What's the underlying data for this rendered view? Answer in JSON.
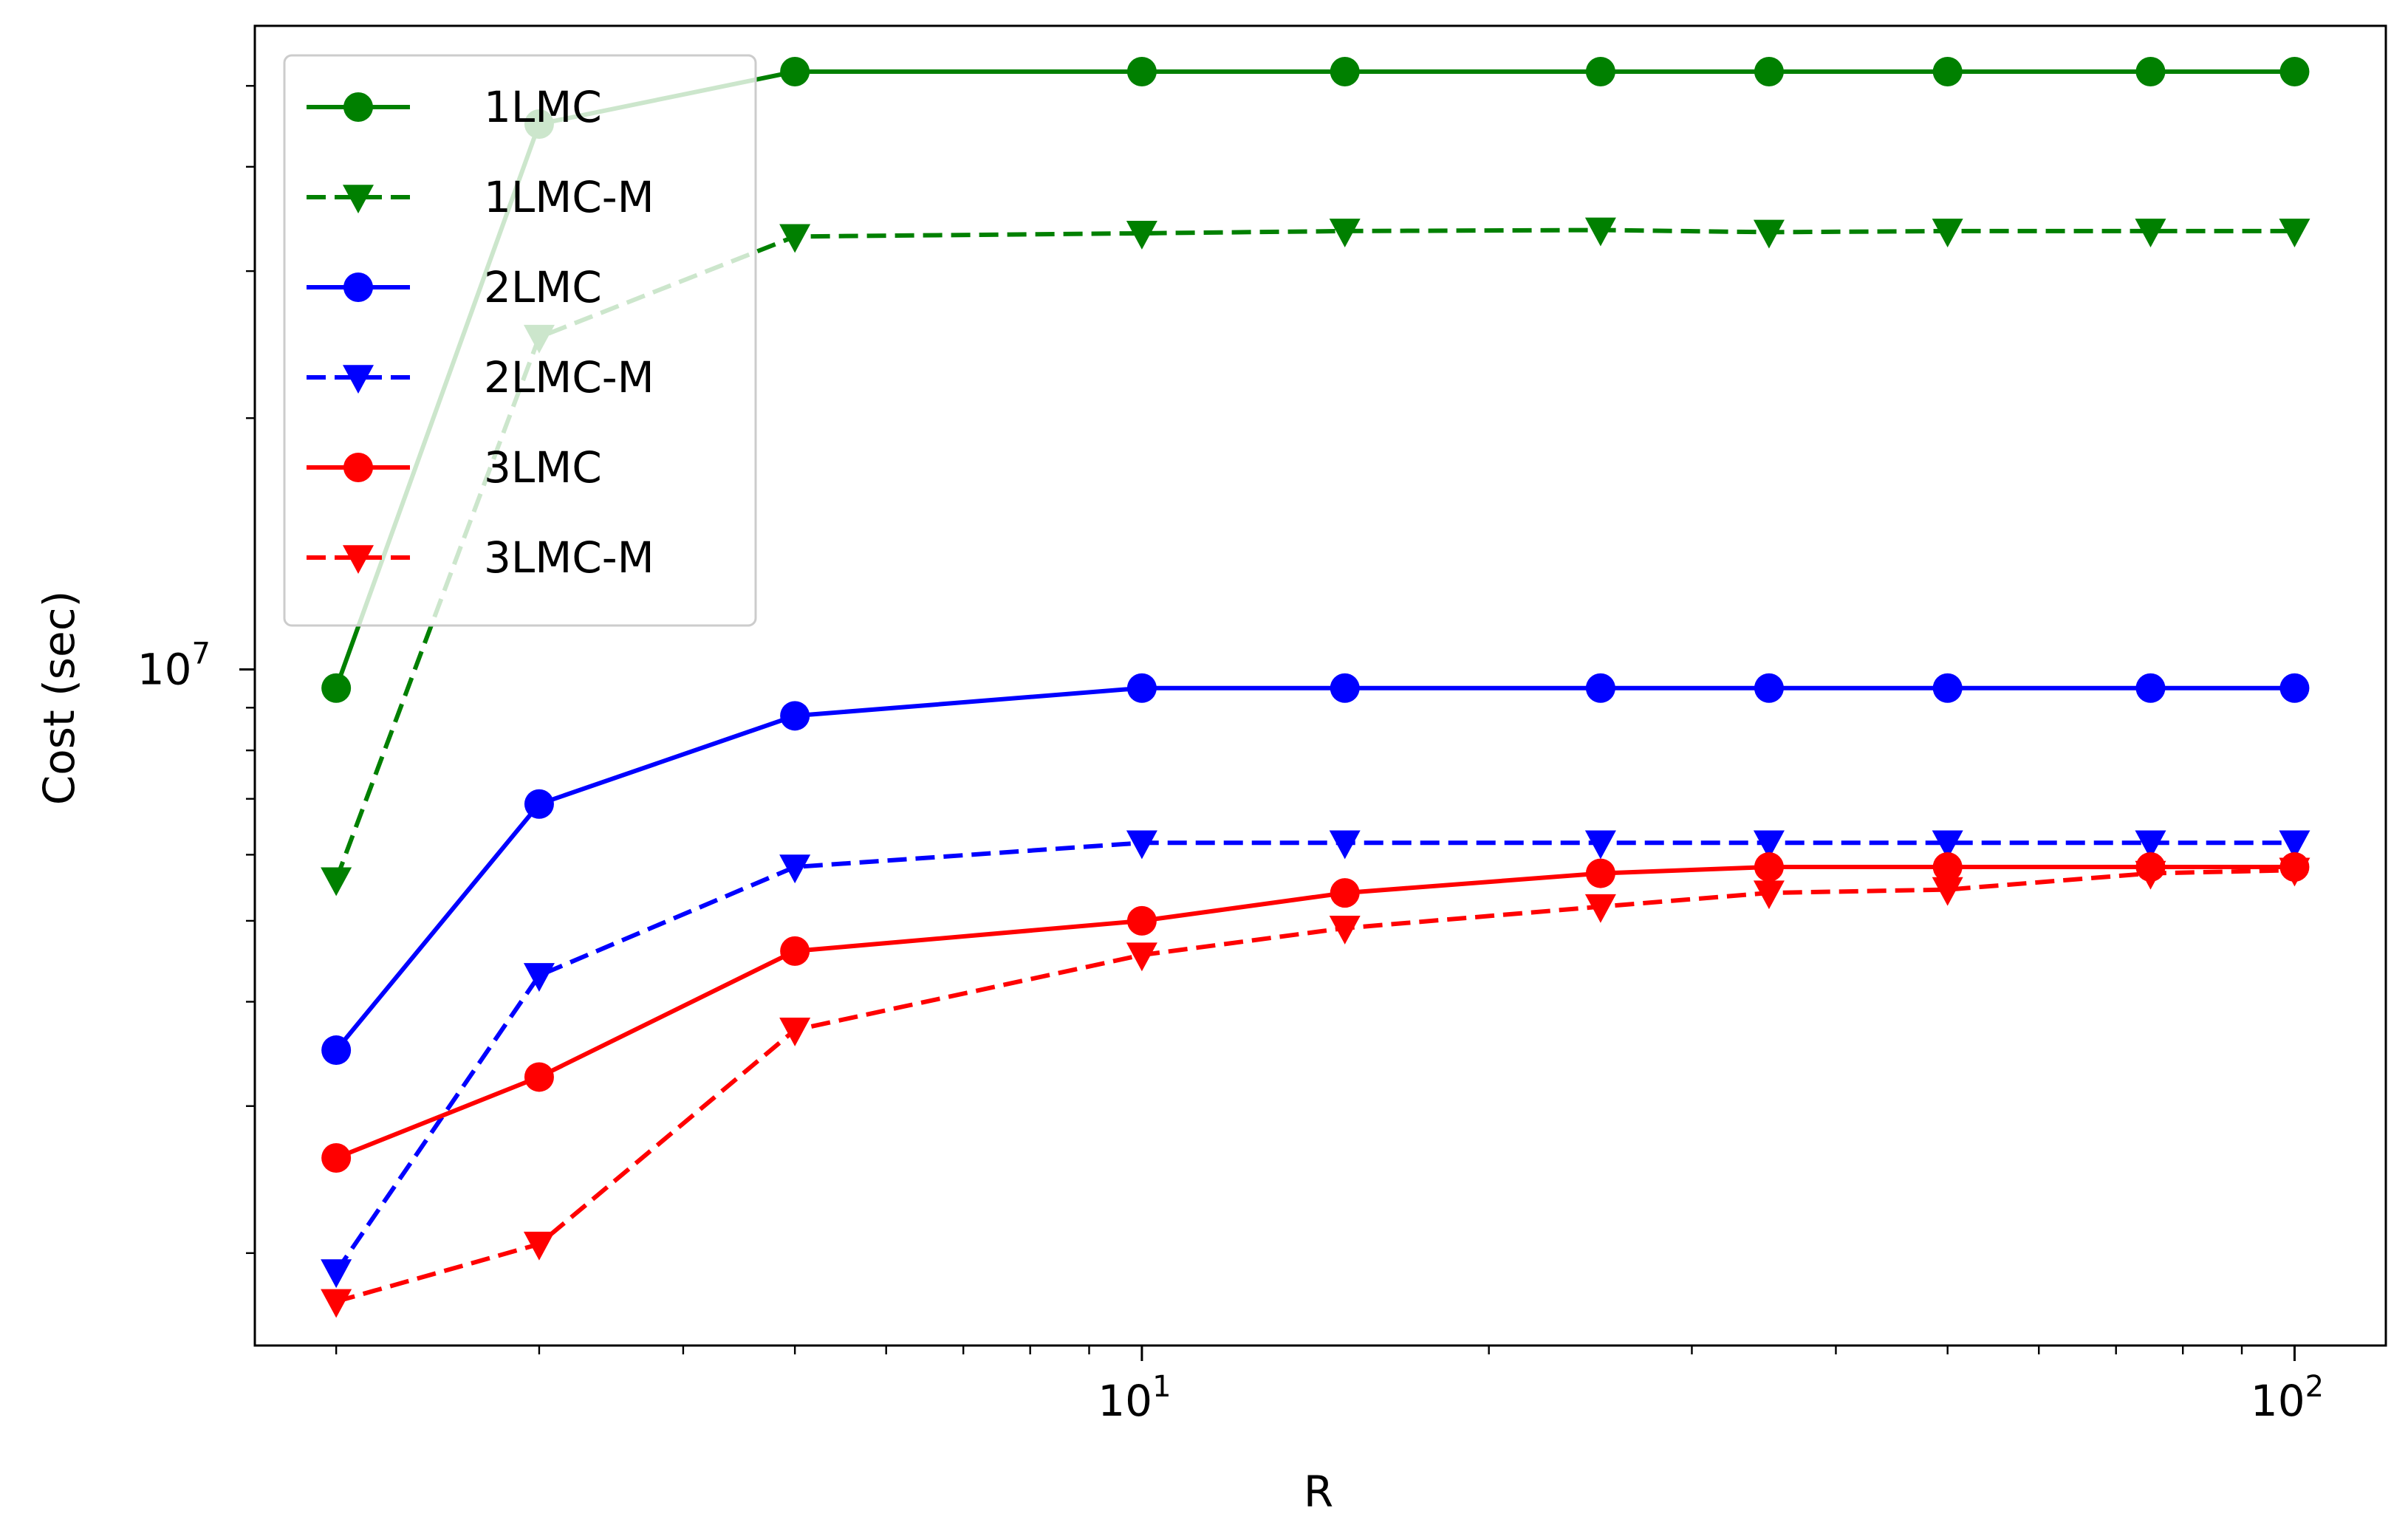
{
  "chart_data": {
    "type": "line",
    "title": "",
    "xlabel": "R",
    "ylabel": "Cost (sec)",
    "xscale": "log",
    "yscale": "log",
    "xlim": [
      1.7,
      120
    ],
    "ylim": [
      1550000.0,
      59000000.0
    ],
    "x": [
      2,
      3,
      5,
      10,
      15,
      25,
      35,
      50,
      75,
      100
    ],
    "x_ticks": [
      {
        "value": 10,
        "base": "10",
        "exp": "1"
      },
      {
        "value": 100,
        "base": "10",
        "exp": "2"
      }
    ],
    "y_ticks": [
      {
        "value": 10000000,
        "base": "10",
        "exp": "7"
      }
    ],
    "legend_position": "top-left",
    "series": [
      {
        "name": "1LMC",
        "color": "#008000",
        "dash": "solid",
        "marker": "circle",
        "values": [
          9500000.0,
          45000000.0,
          52000000.0,
          52000000.0,
          52000000.0,
          52000000.0,
          52000000.0,
          52000000.0,
          52000000.0,
          52000000.0
        ]
      },
      {
        "name": "1LMC-M",
        "color": "#008000",
        "dash": "dashed",
        "marker": "triangle",
        "values": [
          5600000.0,
          25000000.0,
          33000000.0,
          33300000.0,
          33500000.0,
          33600000.0,
          33400000.0,
          33500000.0,
          33500000.0,
          33500000.0
        ]
      },
      {
        "name": "2LMC",
        "color": "#0000ff",
        "dash": "solid",
        "marker": "circle",
        "values": [
          3500000.0,
          6900000.0,
          8800000.0,
          9500000.0,
          9500000.0,
          9500000.0,
          9500000.0,
          9500000.0,
          9500000.0,
          9500000.0
        ]
      },
      {
        "name": "2LMC-M",
        "color": "#0000ff",
        "dash": "dashed",
        "marker": "triangle",
        "values": [
          1900000.0,
          4300000.0,
          5800000.0,
          6200000.0,
          6200000.0,
          6200000.0,
          6200000.0,
          6200000.0,
          6200000.0,
          6200000.0
        ]
      },
      {
        "name": "3LMC",
        "color": "#ff0000",
        "dash": "solid",
        "marker": "circle",
        "values": [
          2600000.0,
          3250000.0,
          4600000.0,
          5000000.0,
          5400000.0,
          5700000.0,
          5800000.0,
          5800000.0,
          5800000.0,
          5800000.0
        ]
      },
      {
        "name": "3LMC-M",
        "color": "#ff0000",
        "dash": "dashed",
        "marker": "triangle",
        "values": [
          1750000.0,
          2050000.0,
          3700000.0,
          4550000.0,
          4900000.0,
          5200000.0,
          5400000.0,
          5450000.0,
          5700000.0,
          5750000.0
        ]
      }
    ]
  }
}
